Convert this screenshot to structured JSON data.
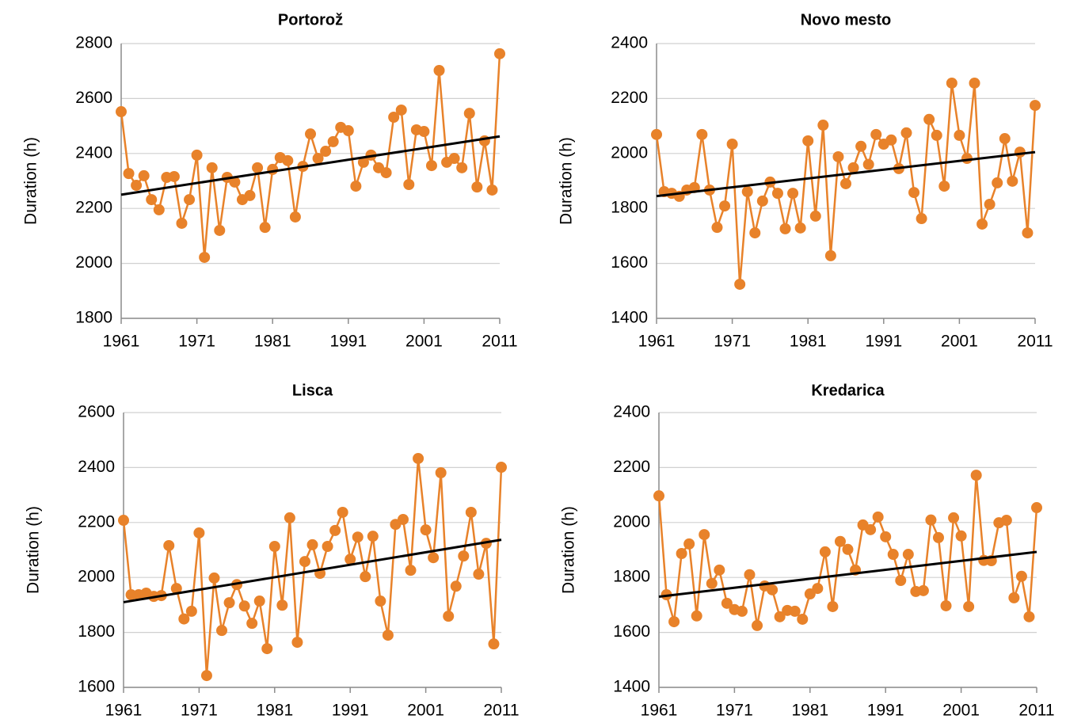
{
  "chart_data": [
    {
      "type": "line",
      "title": "Portorož",
      "y_label": "Duration (h)",
      "x": [
        1961,
        1962,
        1963,
        1964,
        1965,
        1966,
        1967,
        1968,
        1969,
        1970,
        1971,
        1972,
        1973,
        1974,
        1975,
        1976,
        1977,
        1978,
        1979,
        1980,
        1981,
        1982,
        1983,
        1984,
        1985,
        1986,
        1987,
        1988,
        1989,
        1990,
        1991,
        1992,
        1993,
        1994,
        1995,
        1996,
        1997,
        1998,
        1999,
        2000,
        2001,
        2002,
        2003,
        2004,
        2005,
        2006,
        2007,
        2008,
        2009,
        2010,
        2011
      ],
      "series": [
        {
          "color": "#e8822a",
          "values": [
            2552,
            2327,
            2284,
            2319,
            2232,
            2195,
            2313,
            2316,
            2146,
            2232,
            2394,
            2022,
            2348,
            2120,
            2313,
            2296,
            2232,
            2247,
            2348,
            2131,
            2342,
            2385,
            2374,
            2169,
            2353,
            2471,
            2382,
            2408,
            2443,
            2495,
            2483,
            2281,
            2368,
            2394,
            2348,
            2330,
            2532,
            2558,
            2287,
            2486,
            2480,
            2356,
            2702,
            2368,
            2382,
            2348,
            2546,
            2278,
            2446,
            2267,
            2763
          ]
        }
      ],
      "trend": {
        "x": [
          1961,
          2011
        ],
        "values": [
          2250,
          2462
        ],
        "color": "#000000"
      },
      "xlim": [
        1961,
        2011
      ],
      "xticks": [
        1961,
        1971,
        1981,
        1991,
        2001,
        2011
      ],
      "ylim": [
        1800,
        2800
      ],
      "yticks": [
        1800,
        2000,
        2200,
        2400,
        2600,
        2800
      ],
      "grid": true
    },
    {
      "type": "line",
      "title": "Novo mesto",
      "y_label": "Duration (h)",
      "x": [
        1961,
        1962,
        1963,
        1964,
        1965,
        1966,
        1967,
        1968,
        1969,
        1970,
        1971,
        1972,
        1973,
        1974,
        1975,
        1976,
        1977,
        1978,
        1979,
        1980,
        1981,
        1982,
        1983,
        1984,
        1985,
        1986,
        1987,
        1988,
        1989,
        1990,
        1991,
        1992,
        1993,
        1994,
        1995,
        1996,
        1997,
        1998,
        1999,
        2000,
        2001,
        2002,
        2003,
        2004,
        2005,
        2006,
        2007,
        2008,
        2009,
        2010,
        2011
      ],
      "series": [
        {
          "color": "#e8822a",
          "values": [
            2069,
            1861,
            1855,
            1844,
            1867,
            1876,
            2069,
            1867,
            1731,
            1809,
            2034,
            1524,
            1861,
            1711,
            1827,
            1896,
            1855,
            1726,
            1855,
            1729,
            2046,
            1772,
            2103,
            1628,
            1988,
            1890,
            1948,
            2026,
            1960,
            2069,
            2034,
            2049,
            1945,
            2075,
            1858,
            1763,
            2124,
            2066,
            1881,
            2256,
            2066,
            1982,
            2256,
            1743,
            1815,
            1893,
            2054,
            1899,
            2005,
            1711,
            2175
          ]
        }
      ],
      "trend": {
        "x": [
          1961,
          2011
        ],
        "values": [
          1845,
          2005
        ],
        "color": "#000000"
      },
      "xlim": [
        1961,
        2011
      ],
      "xticks": [
        1961,
        1971,
        1981,
        1991,
        2001,
        2011
      ],
      "ylim": [
        1400,
        2400
      ],
      "yticks": [
        1400,
        1600,
        1800,
        2000,
        2200,
        2400
      ],
      "grid": true
    },
    {
      "type": "line",
      "title": "Lisca",
      "y_label": "Duration (h)",
      "x": [
        1961,
        1962,
        1963,
        1964,
        1965,
        1966,
        1967,
        1968,
        1969,
        1970,
        1971,
        1972,
        1973,
        1974,
        1975,
        1976,
        1977,
        1978,
        1979,
        1980,
        1981,
        1982,
        1983,
        1984,
        1985,
        1986,
        1987,
        1988,
        1989,
        1990,
        1991,
        1992,
        1993,
        1994,
        1995,
        1996,
        1997,
        1998,
        1999,
        2000,
        2001,
        2002,
        2003,
        2004,
        2005,
        2006,
        2007,
        2008,
        2009,
        2010,
        2011
      ],
      "series": [
        {
          "color": "#e8822a",
          "values": [
            2208,
            1937,
            1937,
            1943,
            1931,
            1934,
            2116,
            1960,
            1849,
            1877,
            2162,
            1643,
            1998,
            1807,
            1908,
            1974,
            1896,
            1833,
            1914,
            1741,
            2113,
            1899,
            2217,
            1764,
            2058,
            2119,
            2015,
            2113,
            2171,
            2237,
            2066,
            2147,
            2003,
            2150,
            1914,
            1790,
            2193,
            2211,
            2026,
            2433,
            2173,
            2072,
            2381,
            1859,
            1968,
            2078,
            2237,
            2012,
            2124,
            1758,
            2401
          ]
        }
      ],
      "trend": {
        "x": [
          1961,
          2011
        ],
        "values": [
          1910,
          2137
        ],
        "color": "#000000"
      },
      "xlim": [
        1961,
        2011
      ],
      "xticks": [
        1961,
        1971,
        1981,
        1991,
        2001,
        2011
      ],
      "ylim": [
        1600,
        2600
      ],
      "yticks": [
        1600,
        1800,
        2000,
        2200,
        2400,
        2600
      ],
      "grid": true
    },
    {
      "type": "line",
      "title": "Kredarica",
      "y_label": "Duration (h)",
      "x": [
        1961,
        1962,
        1963,
        1964,
        1965,
        1966,
        1967,
        1968,
        1969,
        1970,
        1971,
        1972,
        1973,
        1974,
        1975,
        1976,
        1977,
        1978,
        1979,
        1980,
        1981,
        1982,
        1983,
        1984,
        1985,
        1986,
        1987,
        1988,
        1989,
        1990,
        1991,
        1992,
        1993,
        1994,
        1995,
        1996,
        1997,
        1998,
        1999,
        2000,
        2001,
        2002,
        2003,
        2004,
        2005,
        2006,
        2007,
        2008,
        2009,
        2010,
        2011
      ],
      "series": [
        {
          "color": "#e8822a",
          "values": [
            2097,
            1737,
            1639,
            1887,
            1922,
            1660,
            1956,
            1778,
            1827,
            1706,
            1683,
            1677,
            1810,
            1625,
            1769,
            1755,
            1657,
            1680,
            1677,
            1648,
            1740,
            1760,
            1893,
            1694,
            1931,
            1902,
            1827,
            1991,
            1974,
            2020,
            1948,
            1884,
            1789,
            1884,
            1749,
            1752,
            2009,
            1945,
            1697,
            2017,
            1951,
            1694,
            2172,
            1862,
            1861,
            1999,
            2008,
            1726,
            1804,
            1657,
            2054
          ]
        }
      ],
      "trend": {
        "x": [
          1961,
          2011
        ],
        "values": [
          1730,
          1893
        ],
        "color": "#000000"
      },
      "xlim": [
        1961,
        2011
      ],
      "xticks": [
        1961,
        1971,
        1981,
        1991,
        2001,
        2011
      ],
      "ylim": [
        1400,
        2400
      ],
      "yticks": [
        1400,
        1600,
        1800,
        2000,
        2200,
        2400
      ],
      "grid": true
    }
  ]
}
